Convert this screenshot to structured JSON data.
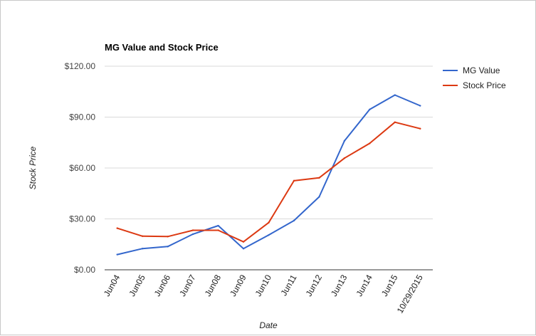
{
  "chart_data": {
    "type": "line",
    "title": "MG Value and Stock Price",
    "xlabel": "Date",
    "ylabel": "Stock Price",
    "categories": [
      "Jun04",
      "Jun05",
      "Jun06",
      "Jun07",
      "Jun08",
      "Jun09",
      "Jun10",
      "Jun11",
      "Jun12",
      "Jun13",
      "Jun14",
      "Jun15",
      "10/29/2015"
    ],
    "yticks": [
      "$0.00",
      "$30.00",
      "$60.00",
      "$90.00",
      "$120.00"
    ],
    "ylim": [
      0,
      120
    ],
    "grid": true,
    "legend_position": "right",
    "series": [
      {
        "name": "MG Value",
        "color": "#3366cc",
        "values": [
          9.0,
          12.5,
          13.7,
          21.0,
          26.0,
          12.5,
          20.5,
          29.0,
          43.0,
          76.0,
          94.5,
          103.0,
          96.7
        ]
      },
      {
        "name": "Stock Price",
        "color": "#dc3912",
        "values": [
          24.5,
          19.8,
          19.6,
          23.3,
          23.3,
          16.5,
          27.8,
          52.5,
          54.2,
          65.8,
          74.5,
          87.0,
          83.2
        ]
      }
    ]
  }
}
